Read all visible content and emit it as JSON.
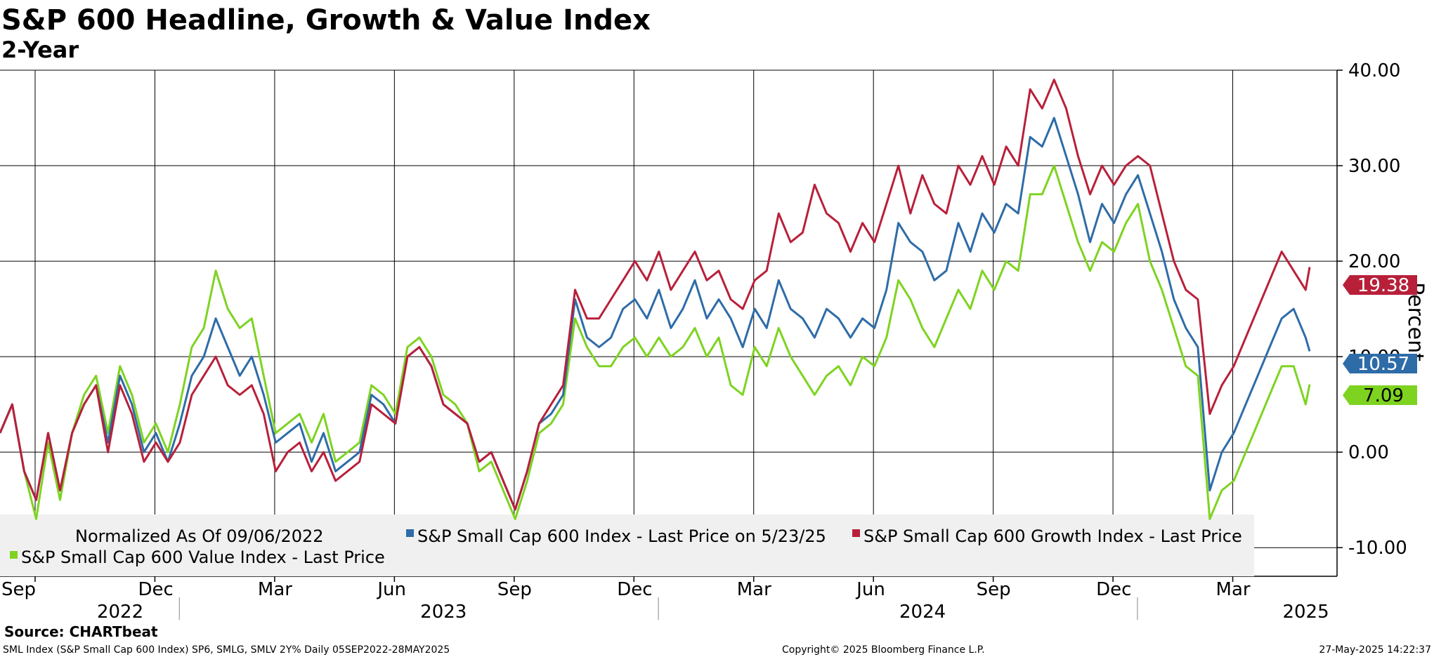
{
  "chart_data": {
    "type": "line",
    "title": "S&P 600 Headline, Growth & Value Index",
    "subtitle": "2-Year",
    "ylabel": "Percent",
    "ylim": [
      -13,
      40
    ],
    "yticks": [
      -10,
      0,
      10,
      20,
      30,
      40
    ],
    "ytick_labels": [
      "-10.00",
      "0.00",
      "10.00",
      "20.00",
      "30.00",
      "40.00"
    ],
    "xlim": [
      0,
      33
    ],
    "month_ticks": [
      {
        "label": "Sep",
        "x": 0
      },
      {
        "label": "Dec",
        "x": 3
      },
      {
        "label": "Mar",
        "x": 6
      },
      {
        "label": "Jun",
        "x": 9
      },
      {
        "label": "Sep",
        "x": 12
      },
      {
        "label": "Dec",
        "x": 15
      },
      {
        "label": "Mar",
        "x": 18
      },
      {
        "label": "Jun",
        "x": 21
      },
      {
        "label": "Sep",
        "x": 24
      },
      {
        "label": "Dec",
        "x": 27
      },
      {
        "label": "Mar",
        "x": 30
      }
    ],
    "year_labels": [
      {
        "label": "2022",
        "x": 1.9
      },
      {
        "label": "2023",
        "x": 10
      },
      {
        "label": "2024",
        "x": 22
      },
      {
        "label": "2025",
        "x": 31.6
      }
    ],
    "year_separators": [
      4,
      16,
      28
    ],
    "legend_lines": [
      "Normalized As Of 09/06/2022"
    ],
    "series": [
      {
        "name": "S&P Small Cap 600 Index - Last Price on 5/23/25",
        "color": "#2e6ca8",
        "last_value": "10.57",
        "x": [
          0,
          0.2,
          0.5,
          0.8,
          1.1,
          1.4,
          1.7,
          2.0,
          2.3,
          2.6,
          2.9,
          3.2,
          3.5,
          3.8,
          4.1,
          4.4,
          4.7,
          5.0,
          5.3,
          5.6,
          5.9,
          6.2,
          6.5,
          6.8,
          7.1,
          7.4,
          7.7,
          8.0,
          8.3,
          8.6,
          8.9,
          9.2,
          9.5,
          9.8,
          10.1,
          10.4,
          10.7,
          11.0,
          11.3,
          11.6,
          11.9,
          12.2,
          12.5,
          12.8,
          13.1,
          13.4,
          13.7,
          14.0,
          14.3,
          14.6,
          14.9,
          15.2,
          15.5,
          15.8,
          16.1,
          16.4,
          16.7,
          17.0,
          17.3,
          17.6,
          17.9,
          18.2,
          18.5,
          18.8,
          19.1,
          19.4,
          19.7,
          20.0,
          20.3,
          20.6,
          20.9,
          21.2,
          21.5,
          21.8,
          22.1,
          22.4,
          22.7,
          23.0,
          23.3,
          23.6,
          23.9,
          24.2,
          24.5,
          24.8,
          25.1,
          25.4,
          25.7,
          26.0,
          26.3,
          26.6,
          26.9,
          27.2,
          27.5,
          27.8,
          28.1,
          28.4,
          28.7,
          29.0,
          29.3,
          29.6,
          29.9,
          30.2,
          30.5,
          30.8,
          31.1,
          31.4,
          31.7,
          32.0,
          32.3,
          32.6,
          32.7
        ],
        "values": [
          2,
          5,
          -2,
          -5,
          2,
          -4,
          2,
          5,
          7,
          1,
          8,
          5,
          0,
          2,
          -1,
          3,
          8,
          10,
          14,
          11,
          8,
          10,
          6,
          1,
          2,
          3,
          -1,
          2,
          -2,
          -1,
          0,
          6,
          5,
          3,
          10,
          11,
          9,
          5,
          4,
          3,
          -1,
          0,
          -3,
          -6,
          -2,
          3,
          4,
          6,
          16,
          12,
          11,
          12,
          15,
          16,
          14,
          17,
          13,
          15,
          18,
          14,
          16,
          14,
          11,
          15,
          13,
          18,
          15,
          14,
          12,
          15,
          14,
          12,
          14,
          13,
          17,
          24,
          22,
          21,
          18,
          19,
          24,
          21,
          25,
          23,
          26,
          25,
          33,
          32,
          35,
          31,
          27,
          22,
          26,
          24,
          27,
          29,
          25,
          21,
          16,
          13,
          11,
          -4,
          0,
          2,
          5,
          8,
          11,
          14,
          15,
          12,
          10.57
        ]
      },
      {
        "name": "S&P Small Cap 600 Growth Index - Last Price",
        "color": "#b8203a",
        "last_value": "19.38",
        "x": [
          0,
          0.2,
          0.5,
          0.8,
          1.1,
          1.4,
          1.7,
          2.0,
          2.3,
          2.6,
          2.9,
          3.2,
          3.5,
          3.8,
          4.1,
          4.4,
          4.7,
          5.0,
          5.3,
          5.6,
          5.9,
          6.2,
          6.5,
          6.8,
          7.1,
          7.4,
          7.7,
          8.0,
          8.3,
          8.6,
          8.9,
          9.2,
          9.5,
          9.8,
          10.1,
          10.4,
          10.7,
          11.0,
          11.3,
          11.6,
          11.9,
          12.2,
          12.5,
          12.8,
          13.1,
          13.4,
          13.7,
          14.0,
          14.3,
          14.6,
          14.9,
          15.2,
          15.5,
          15.8,
          16.1,
          16.4,
          16.7,
          17.0,
          17.3,
          17.6,
          17.9,
          18.2,
          18.5,
          18.8,
          19.1,
          19.4,
          19.7,
          20.0,
          20.3,
          20.6,
          20.9,
          21.2,
          21.5,
          21.8,
          22.1,
          22.4,
          22.7,
          23.0,
          23.3,
          23.6,
          23.9,
          24.2,
          24.5,
          24.8,
          25.1,
          25.4,
          25.7,
          26.0,
          26.3,
          26.6,
          26.9,
          27.2,
          27.5,
          27.8,
          28.1,
          28.4,
          28.7,
          29.0,
          29.3,
          29.6,
          29.9,
          30.2,
          30.5,
          30.8,
          31.1,
          31.4,
          31.7,
          32.0,
          32.3,
          32.6,
          32.7
        ],
        "values": [
          2,
          5,
          -2,
          -5,
          2,
          -4,
          2,
          5,
          7,
          0,
          7,
          4,
          -1,
          1,
          -1,
          1,
          6,
          8,
          10,
          7,
          6,
          7,
          4,
          -2,
          0,
          1,
          -2,
          0,
          -3,
          -2,
          -1,
          5,
          4,
          3,
          10,
          11,
          9,
          5,
          4,
          3,
          -1,
          0,
          -3,
          -6,
          -2,
          3,
          5,
          7,
          17,
          14,
          14,
          16,
          18,
          20,
          18,
          21,
          17,
          19,
          21,
          18,
          19,
          16,
          15,
          18,
          19,
          25,
          22,
          23,
          28,
          25,
          24,
          21,
          24,
          22,
          26,
          30,
          25,
          29,
          26,
          25,
          30,
          28,
          31,
          28,
          32,
          30,
          38,
          36,
          39,
          36,
          31,
          27,
          30,
          28,
          30,
          31,
          30,
          25,
          20,
          17,
          16,
          4,
          7,
          9,
          12,
          15,
          18,
          21,
          19,
          17,
          19.38
        ]
      },
      {
        "name": "S&P Small Cap 600 Value Index - Last Price",
        "color": "#7ed321",
        "last_value": "7.09",
        "x": [
          0,
          0.2,
          0.5,
          0.8,
          1.1,
          1.4,
          1.7,
          2.0,
          2.3,
          2.6,
          2.9,
          3.2,
          3.5,
          3.8,
          4.1,
          4.4,
          4.7,
          5.0,
          5.3,
          5.6,
          5.9,
          6.2,
          6.5,
          6.8,
          7.1,
          7.4,
          7.7,
          8.0,
          8.3,
          8.6,
          8.9,
          9.2,
          9.5,
          9.8,
          10.1,
          10.4,
          10.7,
          11.0,
          11.3,
          11.6,
          11.9,
          12.2,
          12.5,
          12.8,
          13.1,
          13.4,
          13.7,
          14.0,
          14.3,
          14.6,
          14.9,
          15.2,
          15.5,
          15.8,
          16.1,
          16.4,
          16.7,
          17.0,
          17.3,
          17.6,
          17.9,
          18.2,
          18.5,
          18.8,
          19.1,
          19.4,
          19.7,
          20.0,
          20.3,
          20.6,
          20.9,
          21.2,
          21.5,
          21.8,
          22.1,
          22.4,
          22.7,
          23.0,
          23.3,
          23.6,
          23.9,
          24.2,
          24.5,
          24.8,
          25.1,
          25.4,
          25.7,
          26.0,
          26.3,
          26.6,
          26.9,
          27.2,
          27.5,
          27.8,
          28.1,
          28.4,
          28.7,
          29.0,
          29.3,
          29.6,
          29.9,
          30.2,
          30.5,
          30.8,
          31.1,
          31.4,
          31.7,
          32.0,
          32.3,
          32.6,
          32.7
        ],
        "values": [
          2,
          5,
          -2,
          -7,
          1,
          -5,
          2,
          6,
          8,
          2,
          9,
          6,
          1,
          3,
          0,
          5,
          11,
          13,
          19,
          15,
          13,
          14,
          8,
          2,
          3,
          4,
          1,
          4,
          -1,
          0,
          1,
          7,
          6,
          4,
          11,
          12,
          10,
          6,
          5,
          3,
          -2,
          -1,
          -4,
          -7,
          -3,
          2,
          3,
          5,
          14,
          11,
          9,
          9,
          11,
          12,
          10,
          12,
          10,
          11,
          13,
          10,
          12,
          7,
          6,
          11,
          9,
          13,
          10,
          8,
          6,
          8,
          9,
          7,
          10,
          9,
          12,
          18,
          16,
          13,
          11,
          14,
          17,
          15,
          19,
          17,
          20,
          19,
          27,
          27,
          30,
          26,
          22,
          19,
          22,
          21,
          24,
          26,
          20,
          17,
          13,
          9,
          8,
          -7,
          -4,
          -3,
          0,
          3,
          6,
          9,
          9,
          5,
          7.09
        ]
      }
    ]
  },
  "footer": {
    "source": "Source:  CHARTbeat",
    "left": "SML Index (S&P Small Cap 600 Index) SP6, SMLG, SMLV 2Y%  Daily 05SEP2022-28MAY2025",
    "center": "Copyright© 2025 Bloomberg Finance L.P.",
    "right": "27-May-2025 14:22:37"
  }
}
